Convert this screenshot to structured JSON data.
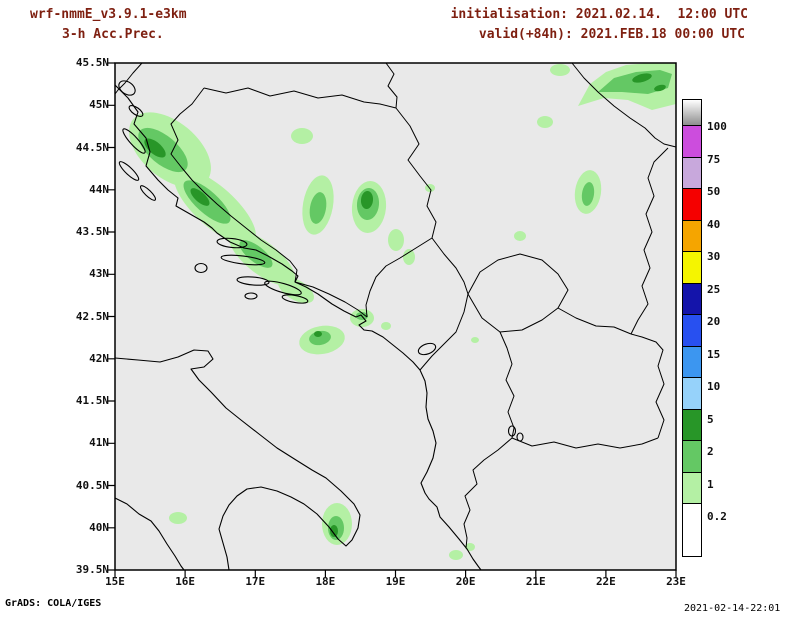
{
  "colors": {
    "header_text": "#7e1f10",
    "axis_text": "#111111",
    "map_bg": "#e9e9e9",
    "frame": "#000000"
  },
  "header": {
    "model_line1": "wrf-nmmE_v3.9.1-e3km",
    "model_line2": "3-h Acc.Prec.",
    "init_line": "initialisation: 2021.02.14.  12:00 UTC",
    "valid_line": "valid(+84h): 2021.FEB.18 00:00 UTC"
  },
  "footer": {
    "credit": "GrADS: COLA/IGES",
    "timestamp": "2021-02-14-22:01"
  },
  "chart_data": {
    "type": "heatmap",
    "title": "3-h Acc.Prec.",
    "model": "wrf-nmmE_v3.9.1-e3km",
    "initialisation": "2021.02.14. 12:00 UTC",
    "forecast_hour": "+84h",
    "valid": "2021.FEB.18 00:00 UTC",
    "x_axis": {
      "range_deg_east": [
        15,
        23
      ],
      "ticks": [
        "15E",
        "16E",
        "17E",
        "18E",
        "19E",
        "20E",
        "21E",
        "22E",
        "23E"
      ]
    },
    "y_axis": {
      "range_deg_north": [
        39.5,
        45.5
      ],
      "ticks": [
        "45.5N",
        "45N",
        "44.5N",
        "44N",
        "43.5N",
        "43N",
        "42.5N",
        "42N",
        "41.5N",
        "41N",
        "40.5N",
        "40N",
        "39.5N"
      ]
    },
    "colorbar": {
      "levels": [
        0.2,
        1,
        2,
        5,
        10,
        15,
        20,
        25,
        30,
        40,
        50,
        75,
        100
      ],
      "tick_labels": [
        "0.2",
        "1",
        "2",
        "5",
        "10",
        "15",
        "20",
        "25",
        "30",
        "40",
        "50",
        "75",
        "100"
      ],
      "colors": [
        "#b4f0a4",
        "#64c864",
        "#289628",
        "#96d2fa",
        "#3c96f0",
        "#2850f0",
        "#1414aa",
        "#f5f500",
        "#f5a500",
        "#f50000",
        "#c8a8dc",
        "#cc4ddd"
      ],
      "over_cap": "gradient white to gray",
      "under_color": "#ffffff"
    },
    "precip_colors": {
      "light": "#b4f0a4",
      "medium": "#64c864",
      "dark": "#289628"
    },
    "precip_areas": [
      {
        "region": "Croatian coast / Dinaric Alps (15.3-17.3E, 43-45N)",
        "values_mm": "0.2-5"
      },
      {
        "region": "Central Bosnia (17.8-18.7E, 43.5-44.2N)",
        "values_mm": "0.2-5"
      },
      {
        "region": "NE corner, Southern Carpathians (21.5-23E, 45-45.5N)",
        "values_mm": "0.2-5"
      },
      {
        "region": "Montenegro coast (17.9-18.4E, 42.2-42.5N)",
        "values_mm": "0.2-5"
      },
      {
        "region": "Strait of Otranto / Salento (18-18.4E, 39.9-40.4N)",
        "values_mm": "0.2-5"
      },
      {
        "region": "Central Serbia (21.6-21.8E, 43.8-44.3N)",
        "values_mm": "0.2-2"
      },
      {
        "region": "Scattered light cells elsewhere",
        "values_mm": "0.2-1"
      }
    ]
  }
}
